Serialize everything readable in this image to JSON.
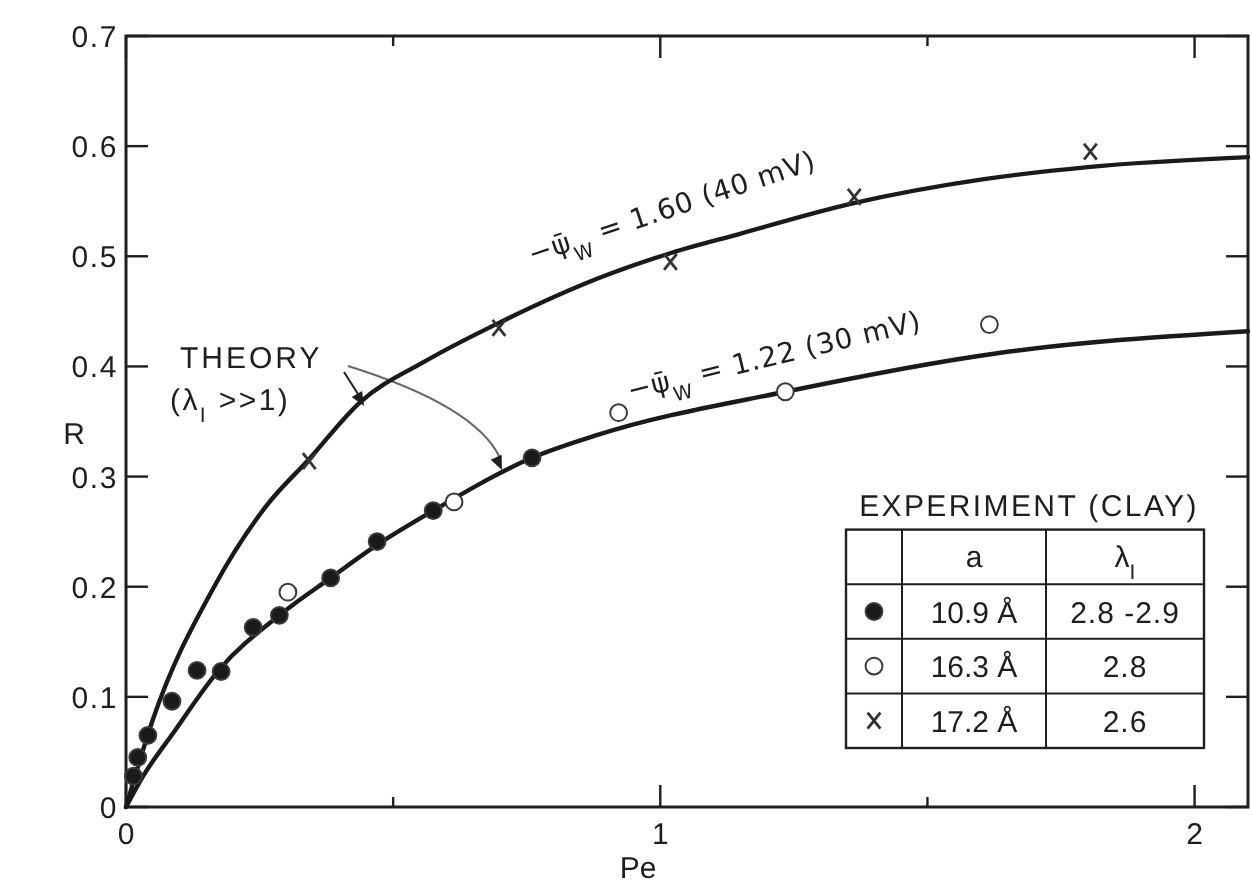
{
  "chart_data": {
    "type": "scatter",
    "xlabel": "Pe",
    "ylabel": "R",
    "legend_title": "EXPERIMENT (CLAY)",
    "legend": "bottom right",
    "annotations": [
      "THEORY",
      "(λ$_{I}$ >>1)",
      "a",
      "λ$_{I}$",
      "2.8 -2.9",
      "2.8",
      "2.6"
    ],
    "xlim": [
      0,
      2.1
    ],
    "ylim": [
      0,
      0.7
    ],
    "xticks": [
      0,
      {
        "value": 0.5,
        "label": null
      },
      1,
      {
        "value": 1.5,
        "label": null
      },
      2
    ],
    "yticks": [
      0,
      0.1,
      0.2,
      0.3,
      0.4,
      0.5,
      0.6,
      0.7
    ],
    "series": [
      {
        "name": "−ψ̄$_{W}$ = 1.60 (40 mV)",
        "type": "line",
        "color": "#1a1a1a",
        "x": [
          0,
          0.05,
          0.165,
          0.262,
          0.343,
          0.437,
          0.561,
          0.7,
          0.884,
          1.02,
          1.146,
          1.36,
          1.606,
          1.8,
          2.1
        ],
        "values": [
          0,
          0.079,
          0.2,
          0.273,
          0.316,
          0.367,
          0.405,
          0.44,
          0.48,
          0.503,
          0.52,
          0.548,
          0.57,
          0.581,
          0.59
        ]
      },
      {
        "name": "−ψ̄$_{W}$ = 1.22 (30 mV)",
        "type": "line",
        "color": "#1a1a1a",
        "x": [
          0,
          0.032,
          0.088,
          0.175,
          0.287,
          0.383,
          0.47,
          0.575,
          0.76,
          0.884,
          1.234,
          1.631,
          2.1
        ],
        "values": [
          0,
          0.028,
          0.067,
          0.125,
          0.174,
          0.208,
          0.238,
          0.269,
          0.317,
          0.338,
          0.377,
          0.412,
          0.432
        ]
      },
      {
        "name": "10.9 Å",
        "color": "#1a1a1a",
        "marker": "circle",
        "x": [
          0.014,
          0.022,
          0.041,
          0.086,
          0.133,
          0.178,
          0.238,
          0.287,
          0.383,
          0.47,
          0.575,
          0.76
        ],
        "values": [
          0.028,
          0.045,
          0.065,
          0.096,
          0.124,
          0.123,
          0.163,
          0.174,
          0.208,
          0.241,
          0.269,
          0.317
        ]
      },
      {
        "name": "16.3 Å",
        "color": "#ffffff",
        "marker": "circle",
        "x": [
          0.303,
          0.614,
          0.922,
          1.234,
          1.616
        ],
        "values": [
          0.195,
          0.277,
          0.358,
          0.377,
          0.438
        ]
      },
      {
        "name": "17.2 Å",
        "color": "#333333",
        "marker": "cross",
        "x": [
          0.343,
          0.698,
          1.019,
          1.363,
          1.805
        ],
        "values": [
          0.314,
          0.435,
          0.495,
          0.554,
          0.595
        ]
      }
    ]
  }
}
